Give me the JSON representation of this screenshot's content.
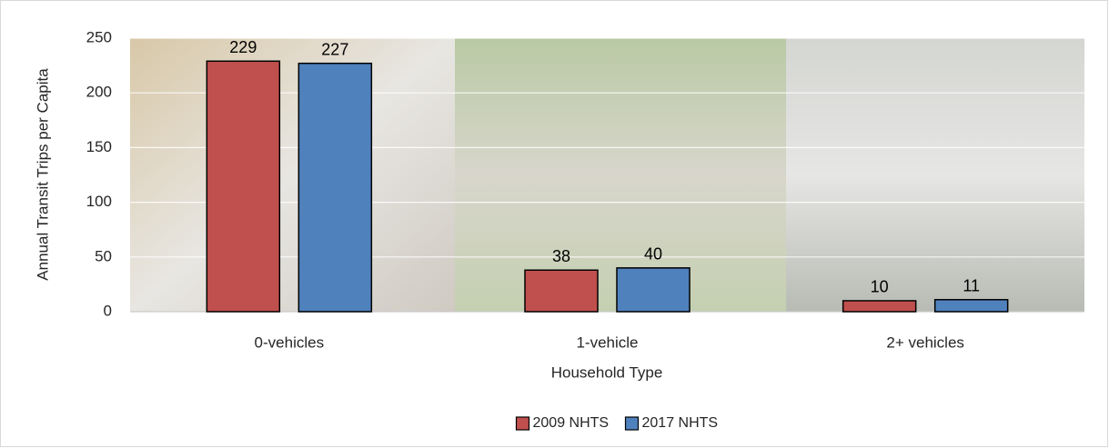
{
  "chart_data": {
    "type": "bar",
    "categories": [
      "0-vehicles",
      "1-vehicle",
      "2+ vehicles"
    ],
    "series": [
      {
        "name": "2009 NHTS",
        "color": "#c0504d",
        "values": [
          229,
          38,
          10
        ]
      },
      {
        "name": "2017 NHTS",
        "color": "#4f81bd",
        "values": [
          227,
          40,
          11
        ]
      }
    ],
    "ylim": [
      0,
      250
    ],
    "yticks": [
      0,
      50,
      100,
      150,
      200,
      250
    ],
    "grid": true,
    "y_label": "Annual Transit Trips per Capita",
    "x_label": "Household Type",
    "legend": "bottom"
  }
}
